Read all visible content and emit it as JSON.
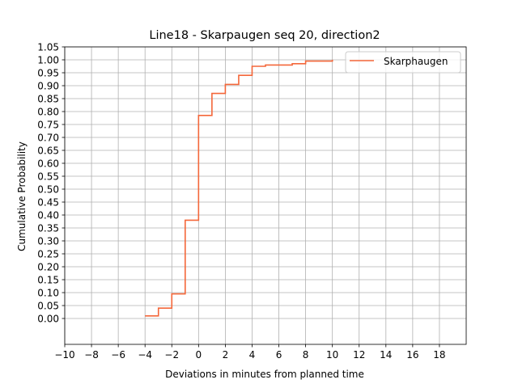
{
  "chart_data": {
    "type": "step",
    "title": "Line18 - Skarpaugen seq 20, direction2",
    "xlabel": "Deviations in minutes from planned time",
    "ylabel": "Cumulative Probability",
    "xlim": [
      -10,
      20
    ],
    "ylim": [
      -0.1,
      1.05
    ],
    "xticks": [
      -10,
      -8,
      -6,
      -4,
      -2,
      0,
      2,
      4,
      6,
      8,
      10,
      12,
      14,
      16,
      18
    ],
    "xtick_labels": [
      "−10",
      "−8",
      "−6",
      "−4",
      "−2",
      "0",
      "2",
      "4",
      "6",
      "8",
      "10",
      "12",
      "14",
      "16",
      "18"
    ],
    "yticks": [
      0.0,
      0.05,
      0.1,
      0.15,
      0.2,
      0.25,
      0.3,
      0.35,
      0.4,
      0.45,
      0.5,
      0.55,
      0.6,
      0.65,
      0.7,
      0.75,
      0.8,
      0.85,
      0.9,
      0.95,
      1.0,
      1.05
    ],
    "ytick_labels": [
      "0.00",
      "0.05",
      "0.10",
      "0.15",
      "0.20",
      "0.25",
      "0.30",
      "0.35",
      "0.40",
      "0.45",
      "0.50",
      "0.55",
      "0.60",
      "0.65",
      "0.70",
      "0.75",
      "0.80",
      "0.85",
      "0.90",
      "0.95",
      "1.00",
      "1.05"
    ],
    "grid": true,
    "legend_position": "top-right",
    "series": [
      {
        "name": "Skarphaugen",
        "color": "#f4673a",
        "x": [
          -4,
          -3,
          -2,
          -1,
          0,
          1,
          2,
          3,
          4,
          5,
          7,
          8,
          10
        ],
        "y": [
          0.01,
          0.04,
          0.095,
          0.38,
          0.785,
          0.87,
          0.905,
          0.94,
          0.975,
          0.98,
          0.985,
          0.995,
          1.0
        ]
      }
    ]
  }
}
